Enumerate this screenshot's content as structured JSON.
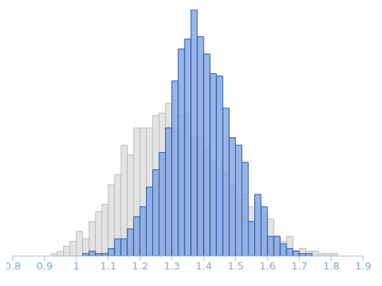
{
  "chart_data": {
    "type": "histogram",
    "bins": [
      0.8,
      0.82,
      0.84,
      0.86,
      0.88,
      0.9,
      0.92,
      0.94,
      0.96,
      0.98,
      1.0,
      1.02,
      1.04,
      1.06,
      1.08,
      1.1,
      1.12,
      1.14,
      1.16,
      1.18,
      1.2,
      1.22,
      1.24,
      1.26,
      1.28,
      1.3,
      1.32,
      1.34,
      1.36,
      1.38,
      1.4,
      1.42,
      1.44,
      1.46,
      1.48,
      1.5,
      1.52,
      1.54,
      1.56,
      1.58,
      1.6,
      1.62,
      1.64,
      1.66,
      1.68,
      1.7,
      1.72,
      1.74,
      1.76,
      1.78,
      1.8,
      1.82,
      1.84,
      1.86,
      1.88,
      1.9
    ],
    "series": [
      {
        "color": "#e3e3e3",
        "values": [
          0,
          0,
          0,
          0,
          0,
          0,
          1,
          2,
          4,
          6,
          10,
          7,
          14,
          18,
          21,
          29,
          33,
          45,
          41,
          52,
          52,
          52,
          57,
          58,
          62,
          52,
          57,
          58,
          48,
          48,
          43,
          38,
          35,
          34,
          28,
          23,
          25,
          20,
          22,
          18,
          15,
          8,
          6,
          8,
          2,
          3,
          2,
          2,
          1,
          1,
          1,
          0,
          0,
          0,
          0
        ]
      },
      {
        "color": "#7fa3e0",
        "values": [
          0,
          0,
          0,
          0,
          0,
          0,
          0,
          0,
          0,
          0,
          0,
          1,
          2,
          1,
          1,
          3,
          7,
          7,
          11,
          16,
          20,
          28,
          35,
          42,
          52,
          71,
          84,
          88,
          100,
          89,
          82,
          74,
          73,
          60,
          48,
          45,
          38,
          14,
          25,
          20,
          8,
          8,
          5,
          3,
          2,
          1,
          1,
          0,
          0,
          0,
          0,
          0,
          0,
          0,
          0
        ]
      }
    ],
    "xlim": [
      0.8,
      1.9
    ],
    "xticks": [
      0.8,
      0.9,
      1,
      1.1,
      1.2,
      1.3,
      1.4,
      1.5,
      1.6,
      1.7,
      1.8,
      1.9
    ],
    "ylim": [
      0,
      100
    ],
    "tick_labels": "x",
    "grid": false
  }
}
